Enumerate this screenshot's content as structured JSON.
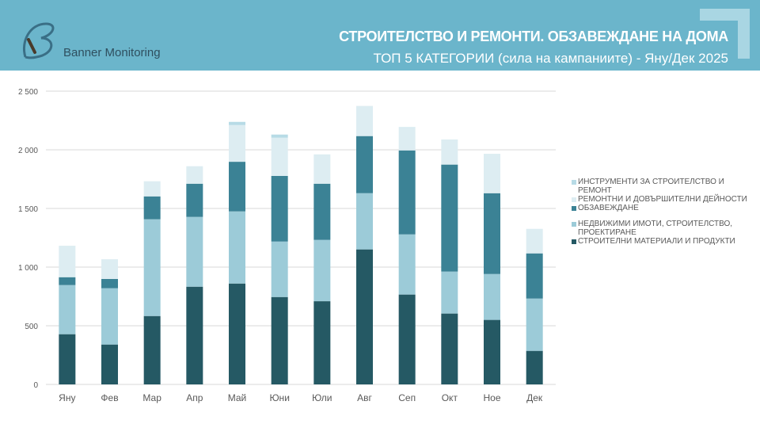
{
  "header": {
    "brand": "Banner Monitoring",
    "title": "СТРОИТЕЛСТВО И РЕМОНТИ. ОБЗАВЕЖДАНЕ НА ДОМА",
    "subtitle": "ТОП 5 КАТЕГОРИИ (сила на кампаниите) - Яну/Дек 2025"
  },
  "chart_data": {
    "type": "bar",
    "stacked": true,
    "title": "ТОП 5 КАТЕГОРИИ (сила на кампаниите) - Яну/Дек 2025",
    "xlabel": "",
    "ylabel": "",
    "ylim": [
      0,
      2500
    ],
    "yticks": [
      0,
      500,
      1000,
      1500,
      2000,
      2500
    ],
    "ytick_labels": [
      "0",
      "500",
      "1 000",
      "1 500",
      "2 000",
      "2 500"
    ],
    "grid": true,
    "legend_position": "right",
    "categories": [
      "Яну",
      "Фев",
      "Мар",
      "Апр",
      "Май",
      "Юни",
      "Юли",
      "Авг",
      "Сеп",
      "Окт",
      "Ное",
      "Дек"
    ],
    "series": [
      {
        "name": "СТРОИТЕЛНИ МАТЕРИАЛИ И ПРОДУКТИ",
        "color": "#255964",
        "values": [
          428,
          340,
          583,
          833,
          860,
          745,
          709,
          1151,
          766,
          604,
          550,
          286
        ]
      },
      {
        "name": "НЕДВИЖИМИ ИМОТИ, СТРОИТЕЛСТВО, ПРОЕКТИРАНЕ",
        "color": "#9ccbd8",
        "values": [
          419,
          480,
          825,
          595,
          615,
          473,
          523,
          479,
          513,
          358,
          391,
          446
        ]
      },
      {
        "name": "ОБЗАВЕЖДАНЕ",
        "color": "#3b8295",
        "values": [
          67,
          79,
          195,
          283,
          423,
          559,
          479,
          487,
          716,
          912,
          689,
          385
        ]
      },
      {
        "name": "РЕМОНТНИ И ДОВЪРШИТЕЛНИ ДЕЙНОСТИ",
        "color": "#ddedf2",
        "values": [
          268,
          168,
          129,
          149,
          313,
          326,
          250,
          257,
          194,
          214,
          336,
          209
        ]
      },
      {
        "name": "ИНСТРУМЕНТИ ЗА СТРОИТЕЛСТВО И РЕМОНТ",
        "color": "#b7dbe6",
        "values": [
          0,
          0,
          0,
          0,
          27,
          27,
          0,
          0,
          3,
          0,
          0,
          0
        ]
      }
    ]
  }
}
